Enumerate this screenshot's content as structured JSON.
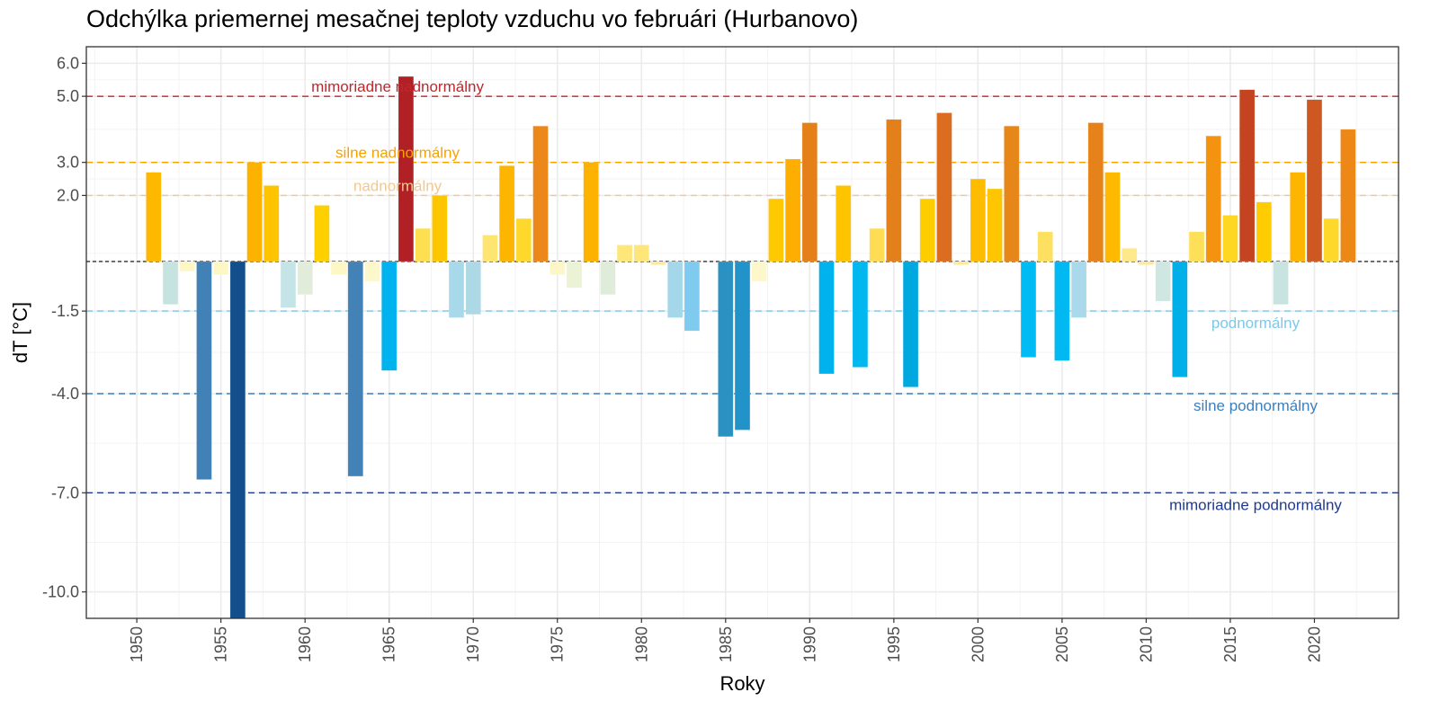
{
  "chart_data": {
    "type": "bar",
    "title": "Odchýlka priemernej mesačnej teploty vzduchu vo februári (Hurbanovo)",
    "xlabel": "Roky",
    "ylabel": "dT [°C]",
    "xlim": [
      1947,
      2025
    ],
    "ylim": [
      -10.8,
      6.5
    ],
    "grid": true,
    "x_ticks": [
      1950,
      1955,
      1960,
      1965,
      1970,
      1975,
      1980,
      1985,
      1990,
      1995,
      2000,
      2005,
      2010,
      2015,
      2020
    ],
    "y_ticks": [
      {
        "value": 6.0,
        "label": "6.0"
      },
      {
        "value": 5.0,
        "label": "5.0"
      },
      {
        "value": 3.0,
        "label": "3.0"
      },
      {
        "value": 2.0,
        "label": "2.0"
      },
      {
        "value": -1.5,
        "label": "-1.5"
      },
      {
        "value": -4.0,
        "label": "-4.0"
      },
      {
        "value": -7.0,
        "label": "-7.0"
      },
      {
        "value": -10.0,
        "label": "-10.0"
      }
    ],
    "reference_lines": [
      {
        "value": 5.0,
        "label": "mimoriadne nadnormálny",
        "color": "#c0272d",
        "label_year": 1965.5,
        "label_pos": "above"
      },
      {
        "value": 3.0,
        "label": "silne nadnormálny",
        "color": "#f5a300",
        "label_year": 1965.5,
        "label_pos": "above"
      },
      {
        "value": 2.0,
        "label": "nadnormálny",
        "color": "#f2c88f",
        "label_year": 1965.5,
        "label_pos": "above"
      },
      {
        "value": 0.0,
        "label": "",
        "color": "#333333"
      },
      {
        "value": -1.5,
        "label": "podnormálny",
        "color": "#7ec8e8",
        "label_year": 2016.5,
        "label_pos": "below"
      },
      {
        "value": -4.0,
        "label": "silne podnormálny",
        "color": "#3d7fbd",
        "label_year": 2016.5,
        "label_pos": "below"
      },
      {
        "value": -7.0,
        "label": "mimoriadne podnormálny",
        "color": "#1f3a8f",
        "label_year": 2016.5,
        "label_pos": "below"
      }
    ],
    "series": [
      {
        "name": "dT",
        "x": [
          1951,
          1952,
          1953,
          1954,
          1955,
          1956,
          1957,
          1958,
          1959,
          1960,
          1961,
          1962,
          1963,
          1964,
          1965,
          1966,
          1967,
          1968,
          1969,
          1970,
          1971,
          1972,
          1973,
          1974,
          1975,
          1976,
          1977,
          1978,
          1979,
          1980,
          1981,
          1982,
          1983,
          1985,
          1986,
          1987,
          1988,
          1989,
          1990,
          1991,
          1992,
          1993,
          1994,
          1995,
          1996,
          1997,
          1998,
          1999,
          2000,
          2001,
          2002,
          2003,
          2004,
          2005,
          2006,
          2007,
          2008,
          2009,
          2010,
          2011,
          2012,
          2013,
          2014,
          2015,
          2016,
          2017,
          2018,
          2019,
          2020,
          2021,
          2022
        ],
        "values": [
          2.7,
          -1.3,
          -0.3,
          -6.6,
          -0.4,
          -11.0,
          3.0,
          2.3,
          -1.4,
          -1.0,
          1.7,
          -0.4,
          -6.5,
          -0.6,
          -3.3,
          5.6,
          1.0,
          2.0,
          -1.7,
          -1.6,
          0.8,
          2.9,
          1.3,
          4.1,
          -0.4,
          -0.8,
          3.0,
          -1.0,
          0.5,
          0.5,
          -0.1,
          -1.7,
          -2.1,
          -5.3,
          -5.1,
          -0.6,
          1.9,
          3.1,
          4.2,
          -3.4,
          2.3,
          -3.2,
          1.0,
          4.3,
          -3.8,
          1.9,
          4.5,
          -0.1,
          2.5,
          2.2,
          4.1,
          -2.9,
          0.9,
          -3.0,
          -1.7,
          4.2,
          2.7,
          0.4,
          -0.1,
          -1.2,
          -3.5,
          0.9,
          3.8,
          1.4,
          5.2,
          1.8,
          -1.3,
          2.7,
          4.9,
          1.3,
          4.0
        ],
        "colors": [
          "#feb800",
          "#c7e3e0",
          "#fdf7c6",
          "#4181b6",
          "#fdf7c6",
          "#134f8c",
          "#feb200",
          "#fec400",
          "#c4e4e8",
          "#e1ecda",
          "#fed000",
          "#fdf7c6",
          "#4282b7",
          "#fdf7cc",
          "#00b3ee",
          "#b12025",
          "#fedf50",
          "#fec600",
          "#a8d9ea",
          "#add9e6",
          "#fee571",
          "#feb500",
          "#fed92c",
          "#eb8819",
          "#fdf7c8",
          "#ecf2d6",
          "#feb200",
          "#dfecda",
          "#fee678",
          "#fee678",
          "#fde99a",
          "#a5d7ea",
          "#7fcbf0",
          "#2a91c3",
          "#2293c8",
          "#fdf7cc",
          "#fec900",
          "#feae00",
          "#e58019",
          "#00b3ee",
          "#fec400",
          "#00b7f0",
          "#fedd55",
          "#e4801a",
          "#00a8e0",
          "#fecd00",
          "#dc6c1f",
          "#fde99a",
          "#febc00",
          "#fec500",
          "#e7871a",
          "#00bbf4",
          "#fee060",
          "#00b8f2",
          "#a9d9ea",
          "#e58219",
          "#feb900",
          "#fde88a",
          "#fde99a",
          "#d0e6e0",
          "#00aee8",
          "#fedf58",
          "#f3930f",
          "#fed722",
          "#c44320",
          "#fecc00",
          "#c8e3e0",
          "#feb500",
          "#cd5821",
          "#fed92c",
          "#ed8816"
        ]
      }
    ]
  }
}
